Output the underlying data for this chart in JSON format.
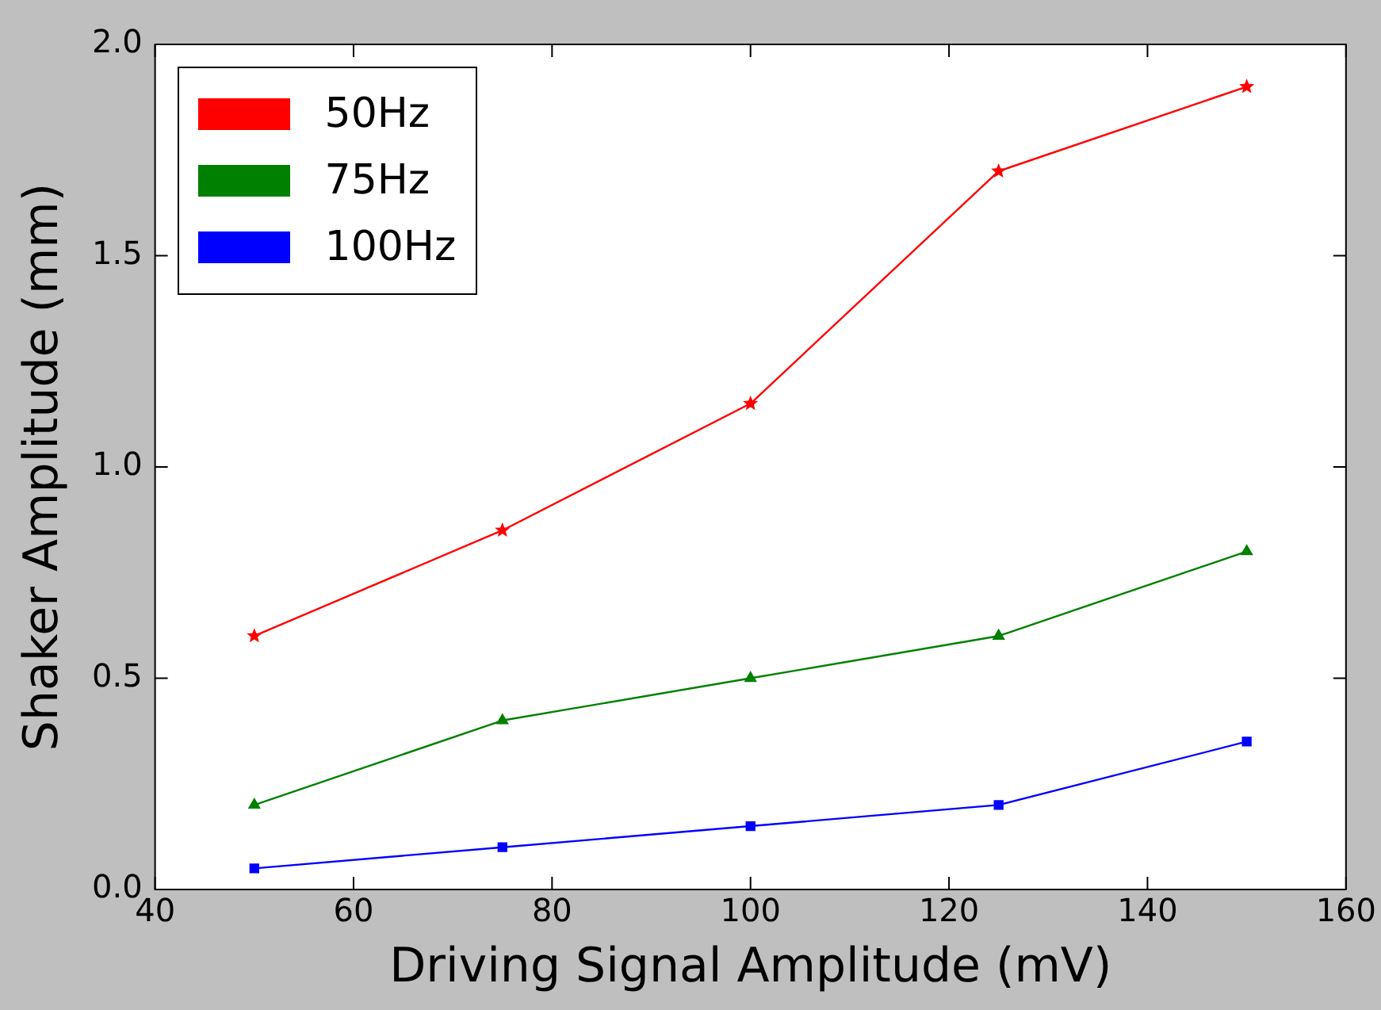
{
  "chart_data": {
    "type": "line",
    "xlabel": "Driving Signal Amplitude (mV)",
    "ylabel": "Shaker Amplitude (mm)",
    "x": [
      50,
      75,
      100,
      125,
      150
    ],
    "series": [
      {
        "name": "50Hz",
        "color": "#ff0000",
        "marker": "star",
        "values": [
          0.6,
          0.85,
          1.15,
          1.7,
          1.9
        ]
      },
      {
        "name": "75Hz",
        "color": "#008000",
        "marker": "triangle",
        "values": [
          0.2,
          0.4,
          0.5,
          0.6,
          0.8
        ]
      },
      {
        "name": "100Hz",
        "color": "#0000ff",
        "marker": "square",
        "values": [
          0.05,
          0.1,
          0.15,
          0.2,
          0.35
        ]
      }
    ],
    "xlim": [
      40,
      160
    ],
    "xticks": [
      40,
      60,
      80,
      100,
      120,
      140,
      160
    ],
    "ylim": [
      0,
      2
    ],
    "yticks": [
      {
        "value": 0,
        "label": "0.0"
      },
      {
        "value": 0.5,
        "label": "0.5"
      },
      {
        "value": 1,
        "label": "1.0"
      },
      {
        "value": 1.5,
        "label": "1.5"
      },
      {
        "value": 2,
        "label": "2.0"
      }
    ],
    "grid": false,
    "legend": "top left",
    "line_style": "solid"
  }
}
